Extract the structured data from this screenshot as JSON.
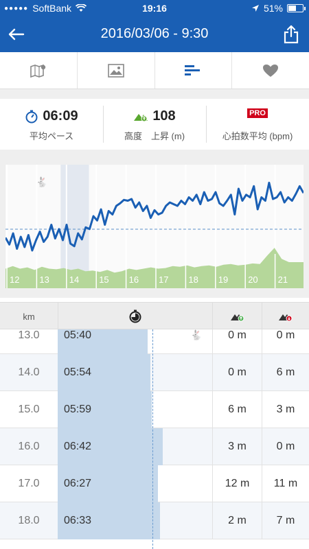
{
  "status_bar": {
    "carrier": "SoftBank",
    "time": "19:16",
    "battery": "51%"
  },
  "nav": {
    "title": "2016/03/06 - 9:30"
  },
  "tabs": [
    {
      "icon": "map-icon"
    },
    {
      "icon": "photo-icon"
    },
    {
      "icon": "splits-icon"
    },
    {
      "icon": "heart-icon"
    }
  ],
  "stats": {
    "pace": {
      "value": "06:09",
      "label": "平均ペース",
      "icon": "pace-icon"
    },
    "elevation": {
      "value": "108",
      "label": "高度　上昇 (m)",
      "icon": "elevation-up-icon"
    },
    "heartrate": {
      "badge": "PRO",
      "label": "心拍数平均 (bpm)"
    }
  },
  "colors": {
    "brand": "#1a5fb4",
    "pace_line": "#1a5fb4",
    "elevation_fill": "#b5d79a",
    "pace_bar": "#c5d8eb",
    "up_green": "#4caf50",
    "down_red": "#d0021b"
  },
  "chart_data": {
    "type": "line",
    "x_tick_labels": [
      "12",
      "13",
      "14",
      "15",
      "16",
      "17",
      "18",
      "19",
      "20",
      "21"
    ],
    "average_line": true,
    "grid": true,
    "pace_series": [
      0.35,
      0.27,
      0.4,
      0.22,
      0.36,
      0.24,
      0.38,
      0.2,
      0.32,
      0.42,
      0.3,
      0.36,
      0.5,
      0.34,
      0.45,
      0.32,
      0.5,
      0.28,
      0.25,
      0.4,
      0.33,
      0.47,
      0.45,
      0.6,
      0.55,
      0.68,
      0.5,
      0.66,
      0.62,
      0.72,
      0.75,
      0.79,
      0.78,
      0.8,
      0.7,
      0.76,
      0.66,
      0.72,
      0.58,
      0.67,
      0.62,
      0.64,
      0.72,
      0.76,
      0.74,
      0.72,
      0.78,
      0.74,
      0.82,
      0.78,
      0.85,
      0.74,
      0.88,
      0.78,
      0.8,
      0.88,
      0.75,
      0.72,
      0.78,
      0.85,
      0.62,
      0.92,
      0.78,
      0.85,
      0.82,
      0.95,
      0.68,
      0.82,
      0.78,
      0.99,
      0.8,
      0.82,
      0.88,
      0.76,
      0.82,
      0.78,
      0.86,
      0.95,
      0.87
    ],
    "elevation_series": [
      0.3,
      0.34,
      0.3,
      0.32,
      0.28,
      0.33,
      0.3,
      0.29,
      0.31,
      0.28,
      0.3,
      0.26,
      0.27,
      0.25,
      0.28,
      0.24,
      0.26,
      0.3,
      0.28,
      0.3,
      0.32,
      0.3,
      0.31,
      0.34,
      0.33,
      0.35,
      0.32,
      0.34,
      0.35,
      0.33,
      0.36,
      0.37,
      0.35,
      0.36,
      0.38,
      0.37,
      0.5,
      0.62,
      0.45,
      0.4,
      0.4,
      0.4
    ]
  },
  "splits_table": {
    "headers": {
      "km": "km",
      "pace_icon": "stopwatch-icon",
      "up_icon": "elevation-up-icon",
      "down_icon": "elevation-down-icon"
    },
    "rows": [
      {
        "km": "13.0",
        "pace": "05:40",
        "pace_fraction": 0.58,
        "fast": true,
        "up": "0 m",
        "down": "0 m"
      },
      {
        "km": "14.0",
        "pace": "05:54",
        "pace_fraction": 0.6,
        "up": "0 m",
        "down": "6 m"
      },
      {
        "km": "15.0",
        "pace": "05:59",
        "pace_fraction": 0.61,
        "up": "6 m",
        "down": "3 m"
      },
      {
        "km": "16.0",
        "pace": "06:42",
        "pace_fraction": 0.68,
        "up": "3 m",
        "down": "0 m"
      },
      {
        "km": "17.0",
        "pace": "06:27",
        "pace_fraction": 0.65,
        "up": "12 m",
        "down": "11 m"
      },
      {
        "km": "18.0",
        "pace": "06:33",
        "pace_fraction": 0.66,
        "up": "2 m",
        "down": "7 m"
      }
    ]
  }
}
